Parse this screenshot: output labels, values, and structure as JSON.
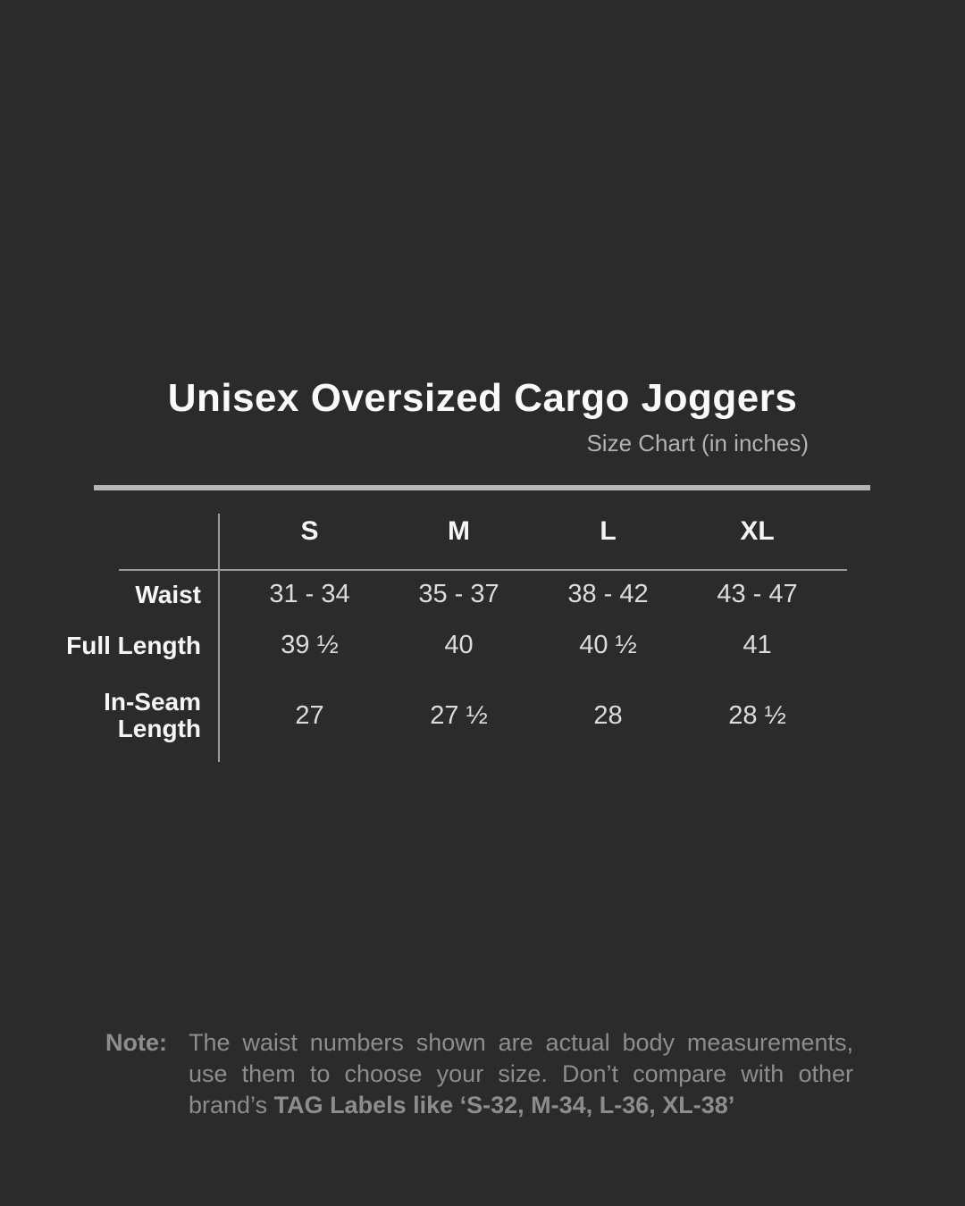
{
  "page": {
    "title": "Unisex Oversized Cargo Joggers",
    "subtitle": "Size Chart (in inches)"
  },
  "chart_data": {
    "type": "table",
    "title": "Unisex Oversized Cargo Joggers",
    "subtitle": "Size Chart (in inches)",
    "unit": "inches",
    "columns": [
      "S",
      "M",
      "L",
      "XL"
    ],
    "rows": [
      {
        "label": "Waist",
        "values": [
          "31 - 34",
          "35 - 37",
          "38 - 42",
          "43 - 47"
        ]
      },
      {
        "label": "Full Length",
        "values": [
          "39 ½",
          "40",
          "40 ½",
          "41"
        ]
      },
      {
        "label": "In-Seam Length",
        "values": [
          "27",
          "27 ½",
          "28",
          "28 ½"
        ]
      }
    ]
  },
  "note": {
    "label": "Note:",
    "line1": "The waist numbers shown are actual body measurements,",
    "line2": "use them to choose your size. Don’t compare with other",
    "line3_regular": "brand’s ",
    "line3_bold": "TAG Labels like ‘S-32, M-34, L-36, XL-38’"
  },
  "colors": {
    "background": "#2b2b2b",
    "title_text": "#fafafa",
    "subtitle_text": "#b2b2b2",
    "thick_rule": "#b5b5b5",
    "table_lines": "#9c9c9c",
    "header_text": "#f6f6f6",
    "value_text": "#dcdcdc",
    "note_text": "#8d8d8d"
  }
}
